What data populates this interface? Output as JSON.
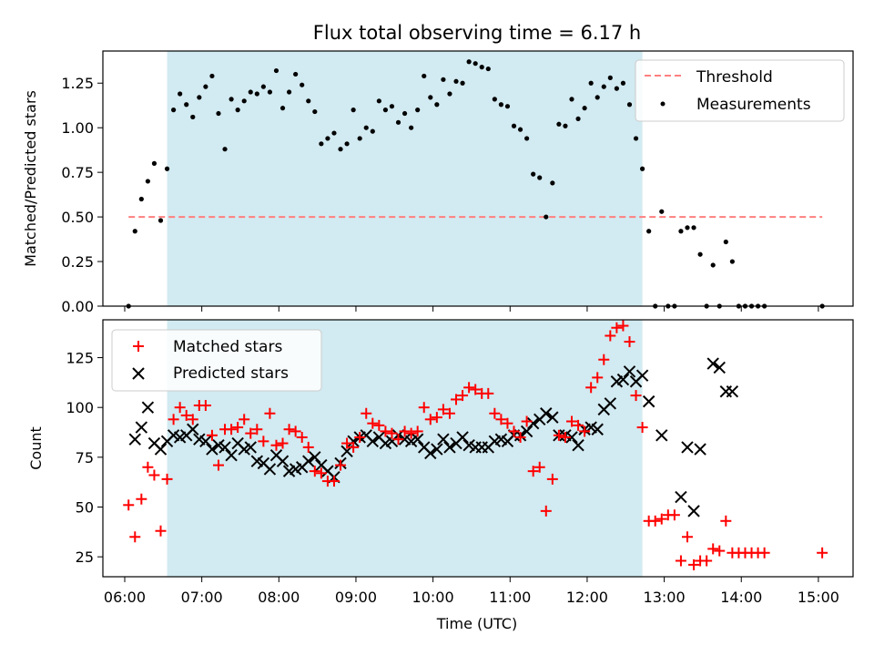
{
  "chart_data": [
    {
      "type": "scatter",
      "title": "Flux total observing time = 6.17 h",
      "xlabel": "",
      "ylabel": "Matched/Predicted stars",
      "xlim": [
        "05:43",
        "15:27"
      ],
      "ylim": [
        0,
        1.43
      ],
      "yticks": [
        "0.00",
        "0.25",
        "0.50",
        "0.75",
        "1.00",
        "1.25"
      ],
      "shaded_span": [
        "06:33",
        "12:43"
      ],
      "shade_color": "#add8e6",
      "legend": {
        "position": "top-right",
        "entries": [
          "Threshold",
          "Measurements"
        ]
      },
      "series": [
        {
          "name": "Threshold",
          "kind": "dashed-line",
          "color": "#ff7f7f",
          "x": [
            "06:03",
            "15:03"
          ],
          "y": [
            0.5,
            0.5
          ]
        },
        {
          "name": "Measurements",
          "kind": "points",
          "color": "#000000",
          "x": [
            "06:03",
            "06:08",
            "06:13",
            "06:18",
            "06:23",
            "06:28",
            "06:33",
            "06:38",
            "06:43",
            "06:48",
            "06:53",
            "06:58",
            "07:03",
            "07:08",
            "07:13",
            "07:18",
            "07:23",
            "07:28",
            "07:33",
            "07:38",
            "07:43",
            "07:48",
            "07:53",
            "07:58",
            "08:03",
            "08:08",
            "08:13",
            "08:18",
            "08:23",
            "08:28",
            "08:33",
            "08:38",
            "08:43",
            "08:48",
            "08:53",
            "08:58",
            "09:03",
            "09:08",
            "09:13",
            "09:18",
            "09:23",
            "09:28",
            "09:33",
            "09:38",
            "09:43",
            "09:48",
            "09:53",
            "09:58",
            "10:03",
            "10:08",
            "10:13",
            "10:18",
            "10:23",
            "10:28",
            "10:33",
            "10:38",
            "10:43",
            "10:48",
            "10:53",
            "10:58",
            "11:03",
            "11:08",
            "11:13",
            "11:18",
            "11:23",
            "11:28",
            "11:33",
            "11:38",
            "11:43",
            "11:48",
            "11:53",
            "11:58",
            "12:03",
            "12:08",
            "12:13",
            "12:18",
            "12:23",
            "12:28",
            "12:33",
            "12:38",
            "12:43",
            "12:48",
            "12:53",
            "12:58",
            "13:03",
            "13:08",
            "13:13",
            "13:18",
            "13:23",
            "13:28",
            "13:33",
            "13:38",
            "13:43",
            "13:48",
            "13:53",
            "13:58",
            "14:03",
            "14:08",
            "14:13",
            "14:18",
            "15:03"
          ],
          "y": [
            0.0,
            0.42,
            0.6,
            0.7,
            0.8,
            0.48,
            0.77,
            1.1,
            1.19,
            1.13,
            1.06,
            1.17,
            1.23,
            1.29,
            1.08,
            0.88,
            1.16,
            1.1,
            1.15,
            1.2,
            1.19,
            1.23,
            1.2,
            1.32,
            1.11,
            1.2,
            1.3,
            1.24,
            1.15,
            1.09,
            0.91,
            0.94,
            0.97,
            0.88,
            0.91,
            1.1,
            0.94,
            1.0,
            0.98,
            1.15,
            1.1,
            1.12,
            1.03,
            1.08,
            1.0,
            1.1,
            1.29,
            1.17,
            1.13,
            1.27,
            1.19,
            1.26,
            1.25,
            1.37,
            1.36,
            1.34,
            1.33,
            1.16,
            1.13,
            1.12,
            1.01,
            0.99,
            0.94,
            0.74,
            0.72,
            0.5,
            0.69,
            1.02,
            1.01,
            1.16,
            1.05,
            1.11,
            1.25,
            1.17,
            1.23,
            1.28,
            1.22,
            1.25,
            1.13,
            0.94,
            0.77,
            0.42,
            0.0,
            0.53,
            0.0,
            0.0,
            0.42,
            0.44,
            0.44,
            0.29,
            0.0,
            0.23,
            0.0,
            0.36,
            0.25,
            0.0,
            0.0,
            0.0,
            0.0,
            0.0,
            0.0
          ]
        }
      ]
    },
    {
      "type": "scatter",
      "title": "",
      "xlabel": "Time (UTC)",
      "ylabel": "Count",
      "xlim": [
        "05:43",
        "15:27"
      ],
      "ylim": [
        15,
        144
      ],
      "yticks": [
        "25",
        "50",
        "75",
        "100",
        "125"
      ],
      "xticks": [
        "06:00",
        "07:00",
        "08:00",
        "09:00",
        "10:00",
        "11:00",
        "12:00",
        "13:00",
        "14:00",
        "15:00"
      ],
      "shaded_span": [
        "06:33",
        "12:43"
      ],
      "shade_color": "#add8e6",
      "legend": {
        "position": "top-left",
        "entries": [
          "Matched stars",
          "Predicted stars"
        ]
      },
      "series": [
        {
          "name": "Matched stars",
          "marker": "plus",
          "color": "#ff0000",
          "x": [
            "06:03",
            "06:08",
            "06:13",
            "06:18",
            "06:23",
            "06:28",
            "06:33",
            "06:38",
            "06:43",
            "06:48",
            "06:53",
            "06:58",
            "07:03",
            "07:08",
            "07:13",
            "07:18",
            "07:23",
            "07:28",
            "07:33",
            "07:38",
            "07:43",
            "07:48",
            "07:53",
            "07:58",
            "08:03",
            "08:08",
            "08:13",
            "08:18",
            "08:23",
            "08:28",
            "08:33",
            "08:38",
            "08:43",
            "08:48",
            "08:53",
            "08:58",
            "09:03",
            "09:08",
            "09:13",
            "09:18",
            "09:23",
            "09:28",
            "09:33",
            "09:38",
            "09:43",
            "09:48",
            "09:53",
            "09:58",
            "10:03",
            "10:08",
            "10:13",
            "10:18",
            "10:23",
            "10:28",
            "10:33",
            "10:38",
            "10:43",
            "10:48",
            "10:53",
            "10:58",
            "11:03",
            "11:08",
            "11:13",
            "11:18",
            "11:23",
            "11:28",
            "11:33",
            "11:38",
            "11:43",
            "11:48",
            "11:53",
            "11:58",
            "12:03",
            "12:08",
            "12:13",
            "12:18",
            "12:23",
            "12:28",
            "12:33",
            "12:38",
            "12:43",
            "12:48",
            "12:53",
            "12:58",
            "13:03",
            "13:08",
            "13:13",
            "13:18",
            "13:23",
            "13:28",
            "13:33",
            "13:38",
            "13:43",
            "13:48",
            "13:53",
            "13:58",
            "14:03",
            "14:08",
            "14:13",
            "14:18",
            "15:03"
          ],
          "y": [
            51,
            35,
            54,
            70,
            66,
            38,
            64,
            94,
            100,
            96,
            94,
            101,
            101,
            86,
            71,
            89,
            89,
            90,
            94,
            87,
            89,
            83,
            97,
            81,
            82,
            89,
            88,
            85,
            80,
            68,
            67,
            63,
            63,
            71,
            82,
            80,
            85,
            97,
            92,
            91,
            88,
            87,
            84,
            88,
            87,
            88,
            100,
            94,
            95,
            99,
            97,
            104,
            106,
            110,
            109,
            107,
            107,
            97,
            94,
            92,
            88,
            85,
            93,
            68,
            70,
            48,
            64,
            86,
            85,
            93,
            91,
            88,
            110,
            115,
            124,
            136,
            140,
            141,
            133,
            106,
            90,
            43,
            43,
            44,
            46,
            46,
            23,
            35,
            21,
            23,
            23,
            29,
            28,
            43,
            27,
            27,
            27,
            27,
            27,
            27,
            27
          ]
        },
        {
          "name": "Predicted stars",
          "marker": "x",
          "color": "#000000",
          "x": [
            "06:08",
            "06:13",
            "06:18",
            "06:23",
            "06:28",
            "06:33",
            "06:38",
            "06:43",
            "06:48",
            "06:53",
            "06:58",
            "07:03",
            "07:08",
            "07:13",
            "07:18",
            "07:23",
            "07:28",
            "07:33",
            "07:38",
            "07:43",
            "07:48",
            "07:53",
            "07:58",
            "08:03",
            "08:08",
            "08:13",
            "08:18",
            "08:23",
            "08:28",
            "08:33",
            "08:38",
            "08:43",
            "08:48",
            "08:53",
            "08:58",
            "09:03",
            "09:08",
            "09:13",
            "09:18",
            "09:23",
            "09:28",
            "09:33",
            "09:38",
            "09:43",
            "09:48",
            "09:53",
            "09:58",
            "10:03",
            "10:08",
            "10:13",
            "10:18",
            "10:23",
            "10:28",
            "10:33",
            "10:38",
            "10:43",
            "10:48",
            "10:53",
            "10:58",
            "11:03",
            "11:08",
            "11:13",
            "11:18",
            "11:23",
            "11:28",
            "11:33",
            "11:38",
            "11:43",
            "11:48",
            "11:53",
            "11:58",
            "12:03",
            "12:08",
            "12:13",
            "12:18",
            "12:23",
            "12:28",
            "12:33",
            "12:38",
            "12:43",
            "12:48",
            "12:58",
            "13:13",
            "13:18",
            "13:23",
            "13:28",
            "13:38",
            "13:43",
            "13:48",
            "13:53"
          ],
          "y": [
            84,
            90,
            100,
            82,
            79,
            83,
            86,
            85,
            86,
            89,
            84,
            83,
            79,
            81,
            80,
            76,
            82,
            79,
            80,
            73,
            72,
            69,
            76,
            73,
            68,
            69,
            70,
            73,
            75,
            71,
            68,
            65,
            72,
            78,
            83,
            85,
            86,
            83,
            85,
            82,
            83,
            86,
            84,
            83,
            84,
            80,
            77,
            79,
            84,
            80,
            82,
            85,
            81,
            80,
            80,
            80,
            83,
            84,
            83,
            86,
            86,
            88,
            92,
            94,
            97,
            95,
            86,
            86,
            85,
            81,
            89,
            90,
            89,
            99,
            102,
            113,
            114,
            118,
            113,
            116,
            103,
            86,
            55,
            80,
            48,
            79,
            122,
            120,
            108,
            108
          ]
        }
      ]
    }
  ]
}
